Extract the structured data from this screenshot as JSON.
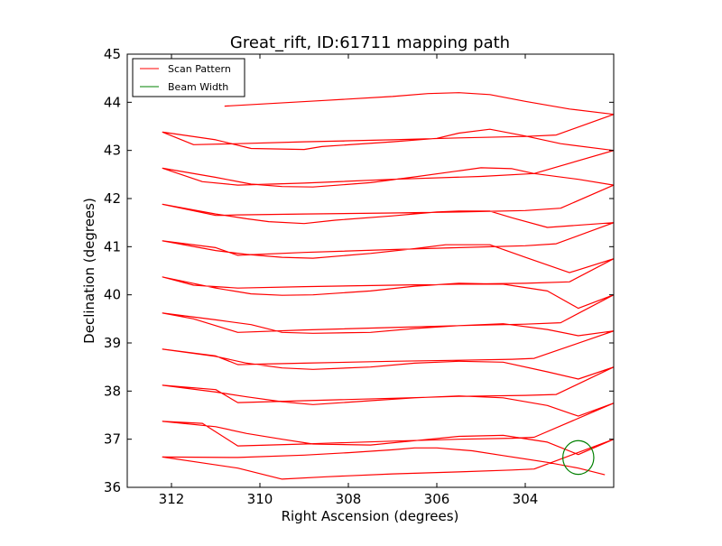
{
  "chart_data": {
    "type": "line",
    "title": "Great_rift, ID:61711 mapping path",
    "xlabel": "Right Ascension (degrees)",
    "ylabel": "Declination (degrees)",
    "xlim": [
      313.0,
      302.0
    ],
    "ylim": [
      36.0,
      45.0
    ],
    "x_inverted": true,
    "grid": false,
    "legend_position": "top-left",
    "x_ticks": [
      312,
      310,
      308,
      306,
      304
    ],
    "y_ticks": [
      36,
      37,
      38,
      39,
      40,
      41,
      42,
      43,
      44,
      45
    ],
    "colors": {
      "scan": "#ff0000",
      "beam": "#008000"
    },
    "series": [
      {
        "name": "Scan Pattern",
        "style": "line",
        "points": [
          [
            310.8,
            43.92
          ],
          [
            308.5,
            44.04
          ],
          [
            307.0,
            44.12
          ],
          [
            306.2,
            44.18
          ],
          [
            305.5,
            44.2
          ],
          [
            304.8,
            44.16
          ],
          [
            304.0,
            44.02
          ],
          [
            303.0,
            43.86
          ],
          [
            302.0,
            43.75
          ],
          [
            303.3,
            43.32
          ],
          [
            304.0,
            43.29
          ],
          [
            305.5,
            43.26
          ],
          [
            307.0,
            43.22
          ],
          [
            309.0,
            43.18
          ],
          [
            310.5,
            43.14
          ],
          [
            311.5,
            43.12
          ],
          [
            312.2,
            43.38
          ],
          [
            311.0,
            43.22
          ],
          [
            310.2,
            43.04
          ],
          [
            309.0,
            43.02
          ],
          [
            308.6,
            43.08
          ],
          [
            307.0,
            43.18
          ],
          [
            306.0,
            43.25
          ],
          [
            305.5,
            43.36
          ],
          [
            304.8,
            43.44
          ],
          [
            304.0,
            43.3
          ],
          [
            303.2,
            43.14
          ],
          [
            302.0,
            43.0
          ],
          [
            303.8,
            42.52
          ],
          [
            305.0,
            42.46
          ],
          [
            307.0,
            42.4
          ],
          [
            309.0,
            42.32
          ],
          [
            310.5,
            42.28
          ],
          [
            311.3,
            42.35
          ],
          [
            312.2,
            42.63
          ],
          [
            311.0,
            42.44
          ],
          [
            310.2,
            42.3
          ],
          [
            309.5,
            42.25
          ],
          [
            308.8,
            42.24
          ],
          [
            307.5,
            42.33
          ],
          [
            306.5,
            42.45
          ],
          [
            305.0,
            42.64
          ],
          [
            304.3,
            42.62
          ],
          [
            303.8,
            42.52
          ],
          [
            302.8,
            42.4
          ],
          [
            302.0,
            42.28
          ],
          [
            303.2,
            41.8
          ],
          [
            304.0,
            41.75
          ],
          [
            305.5,
            41.72
          ],
          [
            307.0,
            41.7
          ],
          [
            309.0,
            41.68
          ],
          [
            310.5,
            41.66
          ],
          [
            311.0,
            41.65
          ],
          [
            312.2,
            41.88
          ],
          [
            311.0,
            41.68
          ],
          [
            310.3,
            41.58
          ],
          [
            309.8,
            41.52
          ],
          [
            309.0,
            41.48
          ],
          [
            308.3,
            41.55
          ],
          [
            307.0,
            41.64
          ],
          [
            306.0,
            41.72
          ],
          [
            305.5,
            41.74
          ],
          [
            304.8,
            41.74
          ],
          [
            304.3,
            41.6
          ],
          [
            303.5,
            41.4
          ],
          [
            302.0,
            41.5
          ],
          [
            303.3,
            41.06
          ],
          [
            304.0,
            41.02
          ],
          [
            305.5,
            40.98
          ],
          [
            307.0,
            40.94
          ],
          [
            309.0,
            40.88
          ],
          [
            310.5,
            40.82
          ],
          [
            311.0,
            40.98
          ],
          [
            312.2,
            41.12
          ],
          [
            311.0,
            40.92
          ],
          [
            310.3,
            40.84
          ],
          [
            309.5,
            40.78
          ],
          [
            308.8,
            40.76
          ],
          [
            307.5,
            40.86
          ],
          [
            306.5,
            40.96
          ],
          [
            305.8,
            41.04
          ],
          [
            304.8,
            41.04
          ],
          [
            304.0,
            40.78
          ],
          [
            303.0,
            40.46
          ],
          [
            302.0,
            40.75
          ],
          [
            303.0,
            40.27
          ],
          [
            304.0,
            40.24
          ],
          [
            305.5,
            40.22
          ],
          [
            307.0,
            40.2
          ],
          [
            309.0,
            40.17
          ],
          [
            310.5,
            40.14
          ],
          [
            311.5,
            40.2
          ],
          [
            312.2,
            40.37
          ],
          [
            311.0,
            40.14
          ],
          [
            310.2,
            40.02
          ],
          [
            309.5,
            39.99
          ],
          [
            308.8,
            40.0
          ],
          [
            307.5,
            40.08
          ],
          [
            306.5,
            40.18
          ],
          [
            305.5,
            40.24
          ],
          [
            304.5,
            40.22
          ],
          [
            303.5,
            40.08
          ],
          [
            302.8,
            39.72
          ],
          [
            302.0,
            40.0
          ],
          [
            303.2,
            39.42
          ],
          [
            304.0,
            39.39
          ],
          [
            305.5,
            39.36
          ],
          [
            307.0,
            39.32
          ],
          [
            309.0,
            39.27
          ],
          [
            310.5,
            39.22
          ],
          [
            311.5,
            39.5
          ],
          [
            312.2,
            39.62
          ],
          [
            311.0,
            39.48
          ],
          [
            310.2,
            39.38
          ],
          [
            309.5,
            39.22
          ],
          [
            308.8,
            39.2
          ],
          [
            307.5,
            39.22
          ],
          [
            306.5,
            39.3
          ],
          [
            305.5,
            39.36
          ],
          [
            304.5,
            39.4
          ],
          [
            303.5,
            39.28
          ],
          [
            302.8,
            39.15
          ],
          [
            302.0,
            39.25
          ],
          [
            303.8,
            38.68
          ],
          [
            304.3,
            38.66
          ],
          [
            305.5,
            38.64
          ],
          [
            307.0,
            38.62
          ],
          [
            309.0,
            38.58
          ],
          [
            310.5,
            38.55
          ],
          [
            311.0,
            38.73
          ],
          [
            312.2,
            38.87
          ],
          [
            311.0,
            38.72
          ],
          [
            310.3,
            38.58
          ],
          [
            309.5,
            38.48
          ],
          [
            308.8,
            38.45
          ],
          [
            307.5,
            38.5
          ],
          [
            306.5,
            38.58
          ],
          [
            305.5,
            38.62
          ],
          [
            304.5,
            38.6
          ],
          [
            303.5,
            38.4
          ],
          [
            302.8,
            38.25
          ],
          [
            302.0,
            38.5
          ],
          [
            303.3,
            37.93
          ],
          [
            304.0,
            37.91
          ],
          [
            305.5,
            37.89
          ],
          [
            307.0,
            37.85
          ],
          [
            309.0,
            37.8
          ],
          [
            310.5,
            37.76
          ],
          [
            311.0,
            38.03
          ],
          [
            312.2,
            38.12
          ],
          [
            311.0,
            37.98
          ],
          [
            310.3,
            37.88
          ],
          [
            309.5,
            37.78
          ],
          [
            308.8,
            37.72
          ],
          [
            307.5,
            37.8
          ],
          [
            306.5,
            37.86
          ],
          [
            305.5,
            37.9
          ],
          [
            304.5,
            37.86
          ],
          [
            303.5,
            37.7
          ],
          [
            302.8,
            37.48
          ],
          [
            302.0,
            37.75
          ],
          [
            303.8,
            37.04
          ],
          [
            304.3,
            37.02
          ],
          [
            305.5,
            37.0
          ],
          [
            307.0,
            36.96
          ],
          [
            309.0,
            36.9
          ],
          [
            310.5,
            36.86
          ],
          [
            311.3,
            37.33
          ],
          [
            312.2,
            37.37
          ],
          [
            311.0,
            37.26
          ],
          [
            310.3,
            37.12
          ],
          [
            309.5,
            37.0
          ],
          [
            308.8,
            36.9
          ],
          [
            307.5,
            36.88
          ],
          [
            306.5,
            36.97
          ],
          [
            305.5,
            37.06
          ],
          [
            304.5,
            37.08
          ],
          [
            303.5,
            36.94
          ],
          [
            302.8,
            36.68
          ],
          [
            302.0,
            37.0
          ],
          [
            303.8,
            36.38
          ],
          [
            304.3,
            36.36
          ],
          [
            305.5,
            36.32
          ],
          [
            307.0,
            36.28
          ],
          [
            308.5,
            36.22
          ],
          [
            309.5,
            36.17
          ],
          [
            310.5,
            36.4
          ],
          [
            312.2,
            36.63
          ],
          [
            310.5,
            36.62
          ],
          [
            309.0,
            36.67
          ],
          [
            308.0,
            36.72
          ],
          [
            307.0,
            36.78
          ],
          [
            306.5,
            36.82
          ],
          [
            306.0,
            36.82
          ],
          [
            305.2,
            36.76
          ],
          [
            304.5,
            36.66
          ],
          [
            303.5,
            36.52
          ],
          [
            302.8,
            36.4
          ],
          [
            302.2,
            36.26
          ]
        ]
      },
      {
        "name": "Beam Width",
        "style": "circle",
        "center": [
          302.8,
          36.62
        ],
        "radius_deg": 0.35
      }
    ]
  }
}
